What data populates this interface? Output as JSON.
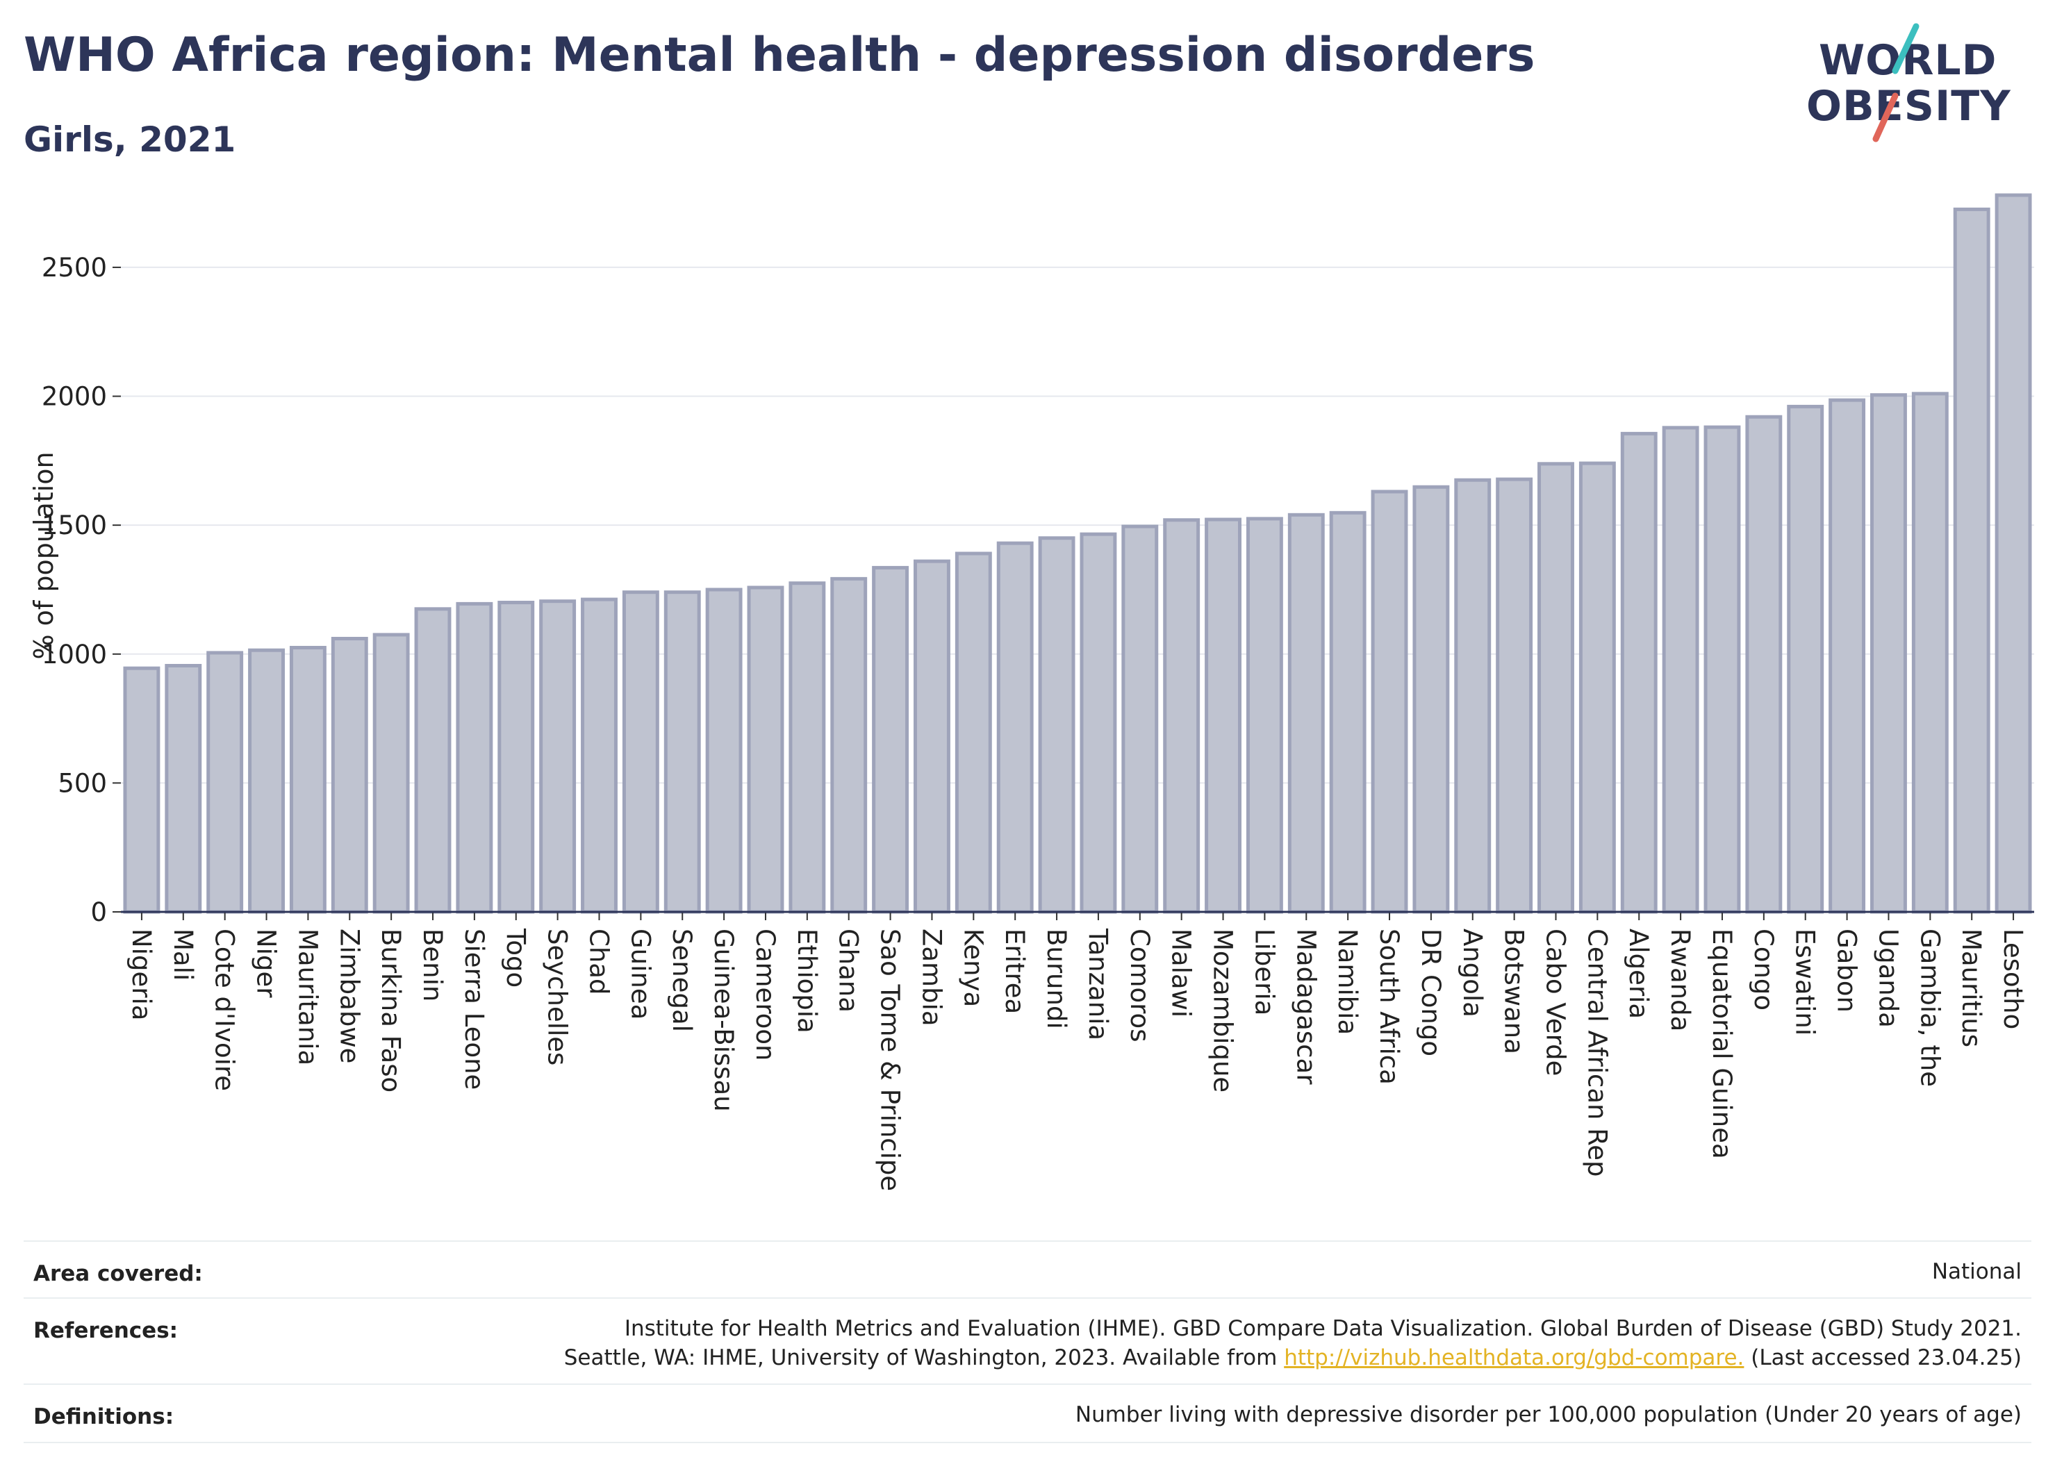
{
  "header": {
    "title": "WHO Africa region: Mental health - depression disorders",
    "subtitle": "Girls, 2021"
  },
  "logo": {
    "line1": "WORLD",
    "line2": "OBESITY",
    "accent_colors": [
      "#3cbfbf",
      "#e0665a"
    ]
  },
  "chart_data": {
    "type": "bar",
    "ylabel": "% of population",
    "ylim": [
      0,
      2850
    ],
    "yticks": [
      0,
      500,
      1000,
      1500,
      2000,
      2500
    ],
    "grid": true,
    "bar_fill": "#bfc3d0",
    "bar_stroke": "#9ea3ba",
    "categories": [
      "Nigeria",
      "Mali",
      "Cote d'Ivoire",
      "Niger",
      "Mauritania",
      "Zimbabwe",
      "Burkina Faso",
      "Benin",
      "Sierra Leone",
      "Togo",
      "Seychelles",
      "Chad",
      "Guinea",
      "Senegal",
      "Guinea-Bissau",
      "Cameroon",
      "Ethiopia",
      "Ghana",
      "Sao Tome & Principe",
      "Zambia",
      "Kenya",
      "Eritrea",
      "Burundi",
      "Tanzania",
      "Comoros",
      "Malawi",
      "Mozambique",
      "Liberia",
      "Madagascar",
      "Namibia",
      "South Africa",
      "DR Congo",
      "Angola",
      "Botswana",
      "Cabo Verde",
      "Central African Rep",
      "Algeria",
      "Rwanda",
      "Equatorial Guinea",
      "Congo",
      "Eswatini",
      "Gabon",
      "Uganda",
      "Gambia, the",
      "Mauritius",
      "Lesotho"
    ],
    "values": [
      945,
      955,
      1005,
      1015,
      1025,
      1060,
      1075,
      1175,
      1195,
      1200,
      1205,
      1212,
      1240,
      1240,
      1250,
      1258,
      1275,
      1292,
      1335,
      1360,
      1390,
      1430,
      1450,
      1465,
      1495,
      1520,
      1522,
      1525,
      1540,
      1548,
      1630,
      1648,
      1675,
      1678,
      1738,
      1740,
      1855,
      1878,
      1880,
      1920,
      1960,
      1985,
      2005,
      2010,
      2725,
      2780
    ]
  },
  "footer": {
    "area_label": "Area covered:",
    "area_value": "National",
    "references_label": "References:",
    "references_line1": "Institute for Health Metrics and Evaluation (IHME). GBD Compare Data Visualization. Global Burden of Disease (GBD) Study 2021.",
    "references_line2_pre": "Seattle, WA: IHME, University of Washington, 2023. Available from ",
    "references_link": "http://vizhub.healthdata.org/gbd-compare.",
    "references_line2_post": " (Last accessed 23.04.25)",
    "definitions_label": "Definitions:",
    "definitions_value": "Number living with depressive disorder per 100,000 population (Under 20 years of age)"
  }
}
